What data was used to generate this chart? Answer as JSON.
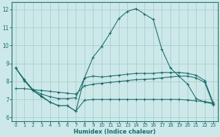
{
  "bg_color": "#cce8e8",
  "grid_color": "#aacccc",
  "line_color": "#1a6b6b",
  "xlabel": "Humidex (Indice chaleur)",
  "x_ticks": [
    0,
    1,
    2,
    3,
    4,
    5,
    6,
    7,
    8,
    9,
    10,
    11,
    12,
    13,
    14,
    15,
    16,
    17,
    18,
    19,
    20,
    21,
    22,
    23
  ],
  "y_ticks": [
    6,
    7,
    8,
    9,
    10,
    11,
    12
  ],
  "ylim": [
    5.8,
    12.4
  ],
  "xlim": [
    -0.5,
    23.5
  ],
  "line1_x": [
    0,
    1,
    2,
    3,
    4,
    5,
    6,
    7,
    8,
    9,
    10,
    11,
    12,
    13,
    14,
    15,
    16,
    17,
    18,
    19,
    20,
    21,
    22,
    23
  ],
  "line1_y": [
    8.75,
    8.1,
    7.5,
    7.2,
    6.85,
    6.65,
    6.65,
    6.35,
    8.2,
    9.35,
    9.95,
    10.7,
    11.5,
    11.9,
    12.05,
    11.75,
    11.45,
    9.8,
    8.75,
    8.3,
    7.85,
    7.05,
    6.85,
    6.75
  ],
  "line2_x": [
    0,
    1,
    2,
    3,
    4,
    5,
    6,
    7,
    8,
    9,
    10,
    11,
    12,
    13,
    14,
    15,
    16,
    17,
    18,
    19,
    20,
    21,
    22,
    23
  ],
  "line2_y": [
    8.75,
    8.1,
    7.55,
    7.3,
    7.15,
    7.05,
    7.05,
    7.1,
    8.2,
    8.3,
    8.25,
    8.3,
    8.35,
    8.4,
    8.45,
    8.45,
    8.45,
    8.5,
    8.5,
    8.5,
    8.45,
    8.35,
    8.05,
    6.8
  ],
  "line3_x": [
    0,
    1,
    2,
    3,
    4,
    5,
    6,
    7,
    8,
    9,
    10,
    11,
    12,
    13,
    14,
    15,
    16,
    17,
    18,
    19,
    20,
    21,
    22,
    23
  ],
  "line3_y": [
    7.6,
    7.6,
    7.55,
    7.5,
    7.45,
    7.4,
    7.35,
    7.3,
    7.75,
    7.85,
    7.9,
    7.95,
    8.0,
    8.05,
    8.1,
    8.12,
    8.15,
    8.2,
    8.25,
    8.3,
    8.3,
    8.2,
    7.95,
    6.7
  ],
  "line4_x": [
    0,
    1,
    2,
    3,
    4,
    5,
    6,
    7,
    8,
    9,
    10,
    11,
    12,
    13,
    14,
    15,
    16,
    17,
    18,
    19,
    20,
    21,
    22,
    23
  ],
  "line4_y": [
    8.75,
    8.05,
    7.5,
    7.15,
    6.85,
    6.65,
    6.65,
    6.35,
    6.95,
    7.0,
    7.0,
    7.0,
    7.0,
    7.0,
    7.0,
    7.0,
    7.0,
    7.0,
    7.0,
    7.0,
    6.97,
    6.92,
    6.88,
    6.8
  ]
}
